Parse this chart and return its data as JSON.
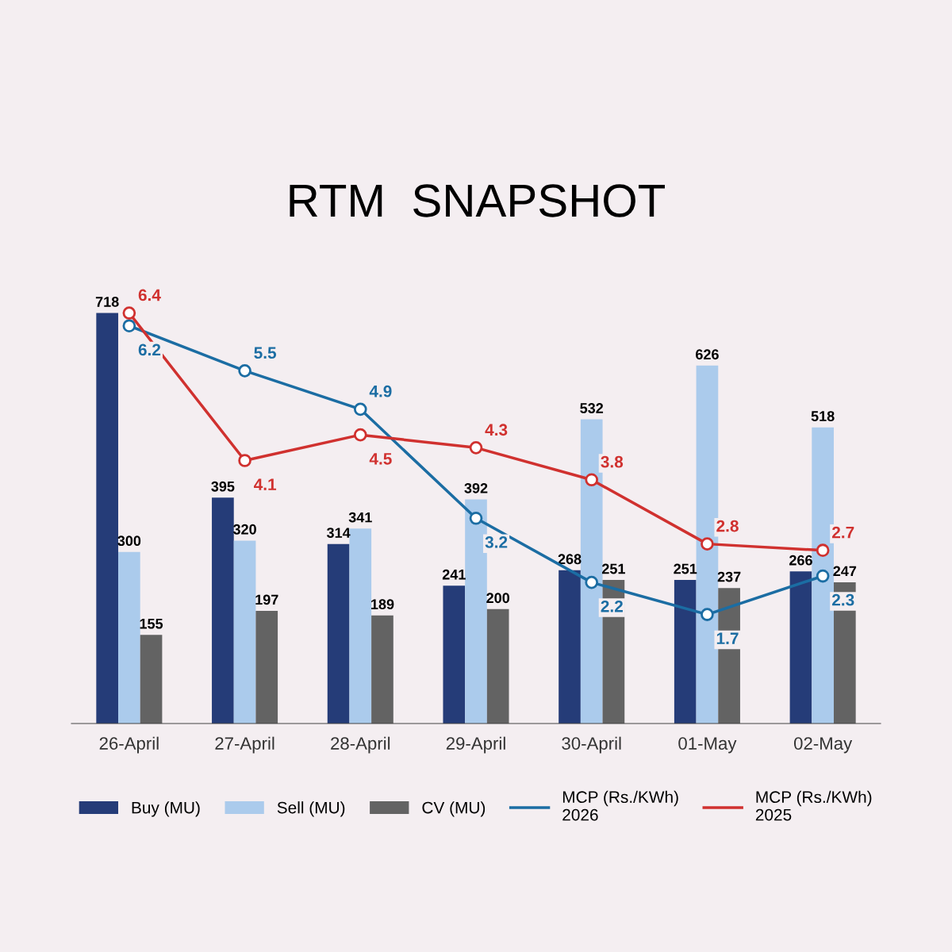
{
  "chart_data": {
    "type": "bar",
    "title": "RTM  SNAPSHOT",
    "categories": [
      "26-April",
      "27-April",
      "28-April",
      "29-April",
      "30-April",
      "01-May",
      "02-May"
    ],
    "series": [
      {
        "name": "Buy (MU)",
        "color": "#253c78",
        "values": [
          718,
          395,
          314,
          241,
          268,
          251,
          266
        ]
      },
      {
        "name": "Sell (MU)",
        "color": "#abcbec",
        "values": [
          300,
          320,
          341,
          392,
          532,
          626,
          518
        ]
      },
      {
        "name": "CV (MU)",
        "color": "#636363",
        "values": [
          155,
          197,
          189,
          200,
          251,
          237,
          247
        ]
      },
      {
        "name": "MCP (Rs./KWh)\n2026",
        "type": "line",
        "axis": "y2",
        "color": "#1b6da3",
        "values": [
          6.2,
          5.5,
          4.9,
          3.2,
          2.2,
          1.7,
          2.3
        ]
      },
      {
        "name": "MCP (Rs./KWh)\n2025",
        "type": "line",
        "axis": "y2",
        "color": "#d0312f",
        "values": [
          6.4,
          4.1,
          4.5,
          4.3,
          3.8,
          2.8,
          2.7
        ]
      }
    ],
    "data_labels": true,
    "marker": "circle",
    "line_style": "solid",
    "grid": false,
    "legend": "bottom",
    "tick_labels": "x"
  }
}
